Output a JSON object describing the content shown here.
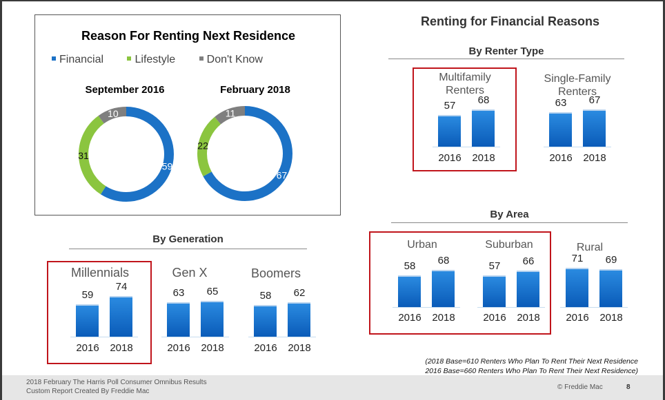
{
  "donuts": {
    "title": "Reason For Renting Next Residence",
    "legend": [
      {
        "label": "Financial",
        "color": "#1c72c6"
      },
      {
        "label": "Lifestyle",
        "color": "#8bc53f"
      },
      {
        "label": "Don't Know",
        "color": "#7f7f7f"
      }
    ]
  },
  "right_title": "Renting for Financial Reasons",
  "note_line1": "(2018 Base=610 Renters Who Plan To Rent Their Next Residence",
  "note_line2": "2016 Base=660 Renters Who Plan To Rent Their Next Residence)",
  "footer": {
    "line1": "2018 February The Harris Poll Consumer Omnibus Results",
    "line2": "Custom Report Created By Freddie Mac",
    "brand": "© Freddie Mac",
    "page": "8"
  },
  "chart_data": [
    {
      "type": "pie",
      "id": "donut_sep2016",
      "title": "September 2016",
      "categories": [
        "Financial",
        "Lifestyle",
        "Don't Know"
      ],
      "values": [
        59,
        31,
        10
      ],
      "labels": [
        "59",
        "31",
        "10"
      ],
      "colors": [
        "#1c72c6",
        "#8bc53f",
        "#7f7f7f"
      ]
    },
    {
      "type": "pie",
      "id": "donut_feb2018",
      "title": "February 2018",
      "categories": [
        "Financial",
        "Lifestyle",
        "Don't Know"
      ],
      "values": [
        67,
        22,
        11
      ],
      "labels": [
        "67",
        "22",
        "11"
      ],
      "colors": [
        "#1c72c6",
        "#8bc53f",
        "#7f7f7f"
      ]
    },
    {
      "type": "bar",
      "id": "by_generation",
      "title": "By Generation",
      "groups": [
        {
          "name": "Millennials",
          "categories": [
            "2016",
            "2018"
          ],
          "values": [
            59,
            74
          ],
          "labels": [
            "59",
            "74"
          ]
        },
        {
          "name": "Gen X",
          "categories": [
            "2016",
            "2018"
          ],
          "values": [
            63,
            65
          ],
          "labels": [
            "63",
            "65"
          ]
        },
        {
          "name": "Boomers",
          "categories": [
            "2016",
            "2018"
          ],
          "values": [
            58,
            62
          ],
          "labels": [
            "58",
            "62"
          ]
        }
      ]
    },
    {
      "type": "bar",
      "id": "by_renter_type",
      "title": "By Renter Type",
      "groups": [
        {
          "name": "Multifamily Renters",
          "name_line1": "Multifamily",
          "name_line2": "Renters",
          "categories": [
            "2016",
            "2018"
          ],
          "values": [
            57,
            68
          ],
          "labels": [
            "57",
            "68"
          ]
        },
        {
          "name": "Single-Family Renters",
          "name_line1": "Single-Family",
          "name_line2": "Renters",
          "categories": [
            "2016",
            "2018"
          ],
          "values": [
            63,
            67
          ],
          "labels": [
            "63",
            "67"
          ]
        }
      ]
    },
    {
      "type": "bar",
      "id": "by_area",
      "title": "By Area",
      "groups": [
        {
          "name": "Urban",
          "categories": [
            "2016",
            "2018"
          ],
          "values": [
            58,
            68
          ],
          "labels": [
            "58",
            "68"
          ]
        },
        {
          "name": "Suburban",
          "categories": [
            "2016",
            "2018"
          ],
          "values": [
            57,
            66
          ],
          "labels": [
            "57",
            "66"
          ]
        },
        {
          "name": "Rural",
          "categories": [
            "2016",
            "2018"
          ],
          "values": [
            71,
            69
          ],
          "labels": [
            "71",
            "69"
          ]
        }
      ]
    }
  ]
}
